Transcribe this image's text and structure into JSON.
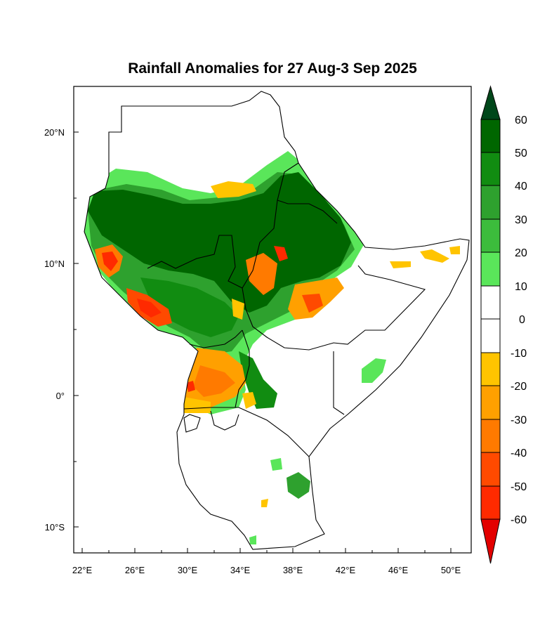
{
  "title": "Rainfall Anomalies for 27 Aug-3 Sep 2025",
  "map": {
    "lon_ticks": [
      "22°E",
      "26°E",
      "30°E",
      "34°E",
      "38°E",
      "42°E",
      "46°E",
      "50°E"
    ],
    "lat_ticks": [
      "20°N",
      "10°N",
      "0°",
      "10°S"
    ],
    "lon_range": [
      21.5,
      51.5
    ],
    "lat_range": [
      -12,
      23.5
    ]
  },
  "colorbar": {
    "labels": [
      "60",
      "50",
      "40",
      "30",
      "20",
      "10",
      "0",
      "-10",
      "-20",
      "-30",
      "-40",
      "-50",
      "-60"
    ],
    "top_arrow_color": "#00471a",
    "bottom_arrow_color": "#e30000",
    "bins": [
      {
        "range": [
          50,
          60
        ],
        "color": "#006600"
      },
      {
        "range": [
          40,
          50
        ],
        "color": "#118c11"
      },
      {
        "range": [
          30,
          40
        ],
        "color": "#2ea12e"
      },
      {
        "range": [
          20,
          30
        ],
        "color": "#3cbc3c"
      },
      {
        "range": [
          10,
          20
        ],
        "color": "#5ae65a"
      },
      {
        "range": [
          0,
          10
        ],
        "color": "#ffffff"
      },
      {
        "range": [
          -10,
          0
        ],
        "color": "#ffffff"
      },
      {
        "range": [
          -20,
          -10
        ],
        "color": "#ffc400"
      },
      {
        "range": [
          -30,
          -20
        ],
        "color": "#ffa000"
      },
      {
        "range": [
          -40,
          -30
        ],
        "color": "#ff7a00"
      },
      {
        "range": [
          -50,
          -40
        ],
        "color": "#ff4a00"
      },
      {
        "range": [
          -60,
          -50
        ],
        "color": "#ff2a00"
      }
    ]
  }
}
